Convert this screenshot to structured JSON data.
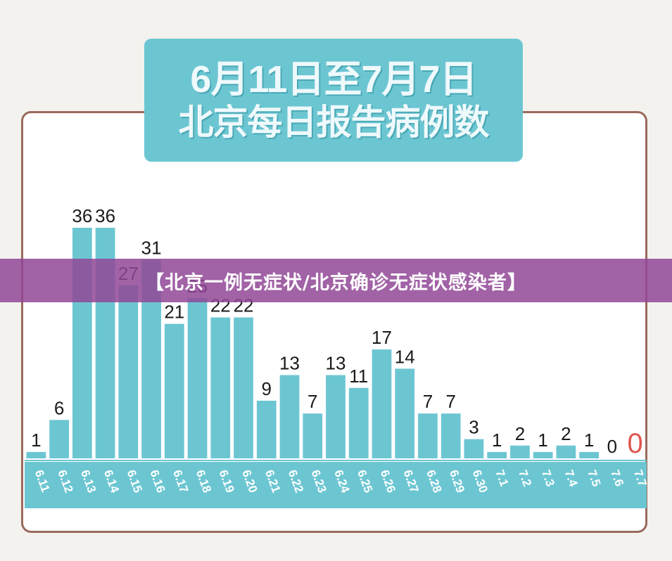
{
  "chart_data": {
    "type": "bar",
    "title": "6月11日至7月7日",
    "subtitle": "北京每日报告病例数",
    "categories": [
      "6.11",
      "6.12",
      "6.13",
      "6.14",
      "6.15",
      "6.16",
      "6.17",
      "6.18",
      "6.19",
      "6.20",
      "6.21",
      "6.22",
      "6.23",
      "6.24",
      "6.25",
      "6.26",
      "6.27",
      "6.28",
      "6.29",
      "6.30",
      "7.1",
      "7.2",
      "7.3",
      "7.4",
      "7.5",
      "7.6",
      "7.7"
    ],
    "values": [
      1,
      6,
      36,
      36,
      27,
      31,
      21,
      25,
      22,
      22,
      9,
      13,
      7,
      13,
      11,
      17,
      14,
      7,
      7,
      3,
      1,
      2,
      1,
      2,
      1,
      0,
      0
    ],
    "xlabel": "",
    "ylabel": "",
    "ylim": [
      0,
      36
    ],
    "grid": false,
    "legend": "none"
  },
  "colors": {
    "bar": "#6cc6d2",
    "axis_band": "#6cc6d2",
    "highlight_zero": "#e0564f",
    "frame": "#9a6a5c",
    "banner": "#904696"
  },
  "banner": {
    "text": "【北京一例无症状/北京确诊无症状感染者】"
  }
}
